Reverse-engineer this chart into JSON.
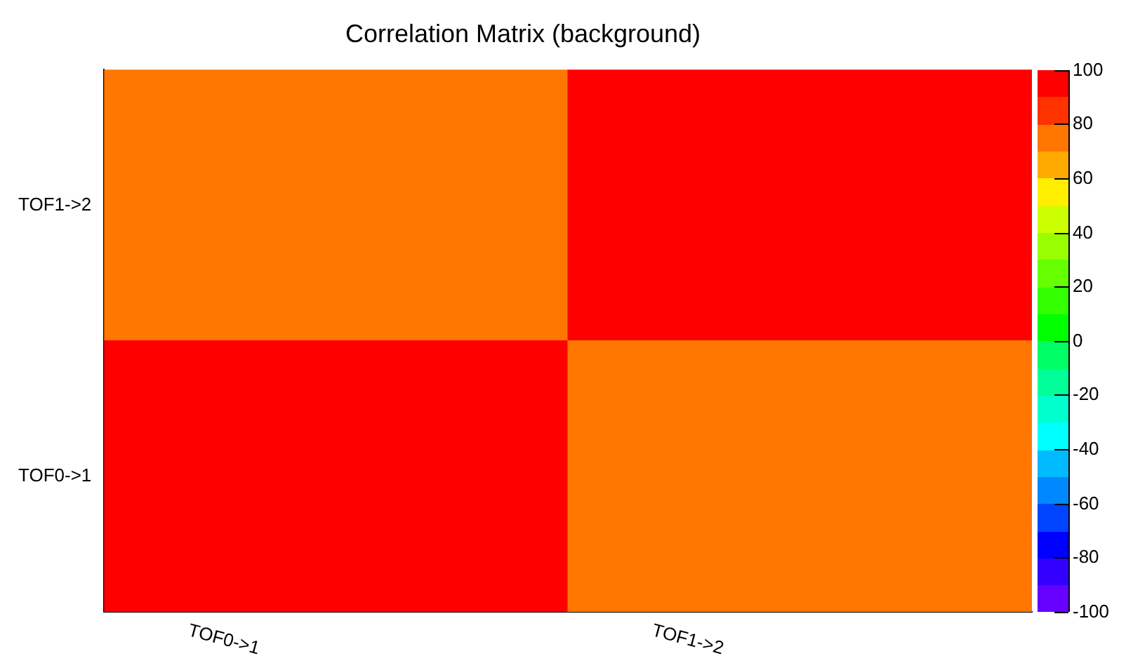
{
  "chart_data": {
    "type": "heatmap",
    "title": "Correlation Matrix (background)",
    "categories": [
      "TOF0->1",
      "TOF1->2"
    ],
    "y_categories": [
      "TOF1->2",
      "TOF0->1"
    ],
    "cells": [
      [
        75,
        100
      ],
      [
        100,
        75
      ]
    ],
    "clim": [
      -100,
      100
    ],
    "cticks": [
      -100,
      -80,
      -60,
      -40,
      -20,
      0,
      20,
      40,
      60,
      80,
      100
    ]
  }
}
